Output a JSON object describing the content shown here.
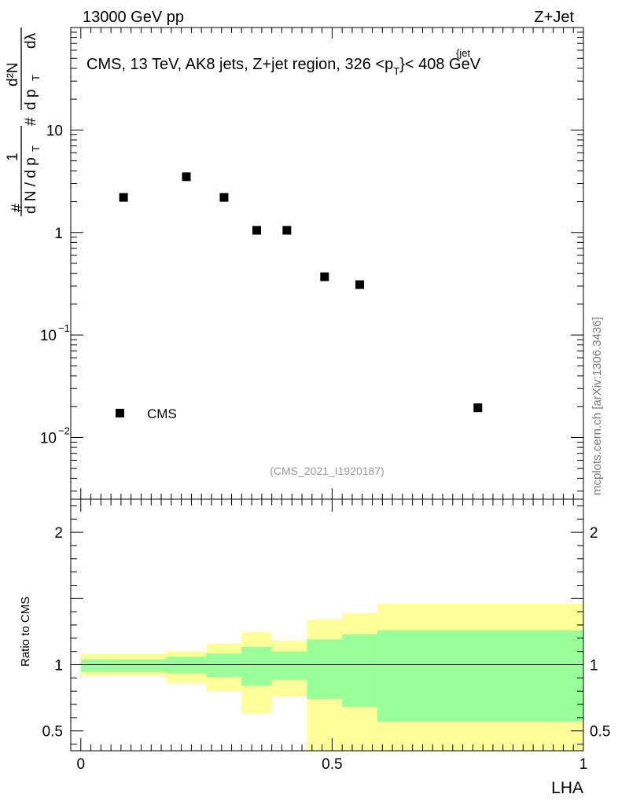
{
  "header": {
    "left_label": "13000 GeV pp",
    "right_label": "Z+Jet"
  },
  "side_label": "mcplots.cern.ch [arXiv:1306.3436]",
  "chart_data": [
    {
      "type": "scatter",
      "title_parts": {
        "before": "CMS, 13 TeV, AK8 jets, Z+jet region, 326 <p",
        "sub": "T",
        "sup": "{jet",
        "after": "}< 408 GeV"
      },
      "ylabel": {
        "num_hash": "#",
        "numerator_one": "1",
        "denominator_dN": "d N / d p",
        "denominator_T": "T",
        "hash2": "#",
        "d2N": "d²N",
        "dpT": "d p",
        "dpT_sub": "T",
        "dlambda": "dλ",
        "leading_hash": "#"
      },
      "yscale": "log",
      "ylim": [
        0.0025,
        100
      ],
      "xlim": [
        -0.02,
        1.0
      ],
      "y_ticks": [
        {
          "value": 10,
          "label": "10"
        },
        {
          "value": 1,
          "label": "1"
        },
        {
          "value": 0.1,
          "base": "10",
          "exp": "−1"
        },
        {
          "value": 0.01,
          "base": "10",
          "exp": "−2"
        }
      ],
      "series": [
        {
          "name": "CMS",
          "marker": "square",
          "color": "#000000",
          "x": [
            0.085,
            0.21,
            0.285,
            0.35,
            0.41,
            0.485,
            0.555,
            0.79
          ],
          "y": [
            2.2,
            3.5,
            2.2,
            1.05,
            1.05,
            0.37,
            0.31,
            0.0195
          ]
        }
      ],
      "legend": {
        "label": "CMS",
        "position": "bottom-left"
      },
      "annotation": "(CMS_2021_I1920187)"
    },
    {
      "type": "area",
      "ylabel": "Ratio to CMS",
      "xlabel": "LHA",
      "xlim": [
        -0.02,
        1.0
      ],
      "ylim": [
        0.35,
        2.25
      ],
      "x_ticks": [
        {
          "value": 0,
          "label": "0"
        },
        {
          "value": 0.5,
          "label": "0.5"
        },
        {
          "value": 1,
          "label": "1"
        }
      ],
      "y_ticks": [
        {
          "value": 2,
          "label": "2"
        },
        {
          "value": 1,
          "label": "1"
        },
        {
          "value": 0.5,
          "label": "0.5"
        }
      ],
      "reference_line": 1,
      "bin_edges": [
        0.0,
        0.17,
        0.25,
        0.32,
        0.38,
        0.45,
        0.52,
        0.59,
        1.0
      ],
      "bands": [
        {
          "name": "outer",
          "color": "#ffff99",
          "low": [
            0.915,
            0.86,
            0.8,
            0.63,
            0.76,
            0.35,
            0.35,
            0.35
          ],
          "high": [
            1.08,
            1.1,
            1.16,
            1.245,
            1.18,
            1.34,
            1.39,
            1.46
          ]
        },
        {
          "name": "inner",
          "color": "#99ff99",
          "low": [
            0.945,
            0.935,
            0.905,
            0.84,
            0.885,
            0.74,
            0.68,
            0.57
          ],
          "high": [
            1.04,
            1.06,
            1.085,
            1.135,
            1.1,
            1.19,
            1.23,
            1.26
          ]
        }
      ]
    }
  ]
}
